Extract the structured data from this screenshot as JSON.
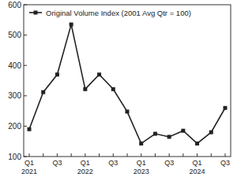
{
  "chart_data": {
    "type": "line",
    "categories": [
      "Q1 2021",
      null,
      "Q3",
      null,
      "Q1 2022",
      null,
      "Q3",
      null,
      "Q1 2023",
      null,
      "Q3",
      null,
      "Q1 2024",
      null,
      "Q3"
    ],
    "series": [
      {
        "name": "Original Volume Index (2001 Avg Qtr = 100)",
        "color": "#222222",
        "marker": "square",
        "values": [
          190,
          312,
          370,
          535,
          322,
          370,
          322,
          248,
          143,
          175,
          165,
          185,
          143,
          180,
          260
        ]
      }
    ],
    "ylim": [
      100,
      600
    ],
    "yticks": [
      100,
      200,
      300,
      400,
      500,
      600
    ],
    "grid": false,
    "legend": "upper left"
  }
}
